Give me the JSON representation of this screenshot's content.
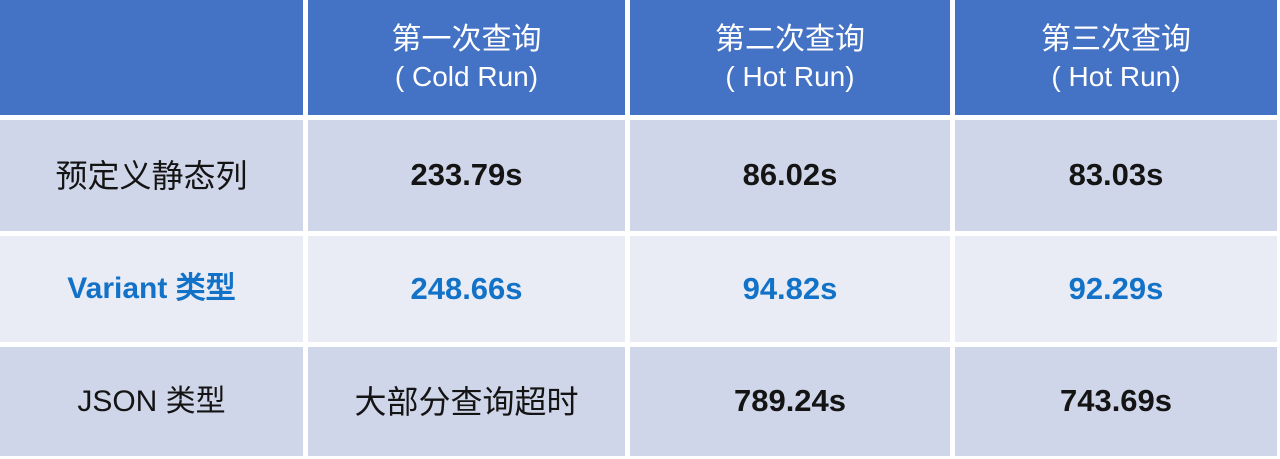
{
  "colors": {
    "header_bg": "#4472C4",
    "band_dark": "#D0D6E9",
    "band_light": "#E9EBF5",
    "accent_blue": "#1172C7",
    "divider_white": "#FFFFFF"
  },
  "table": {
    "header": {
      "corner": "",
      "cols": [
        {
          "title_zh": "第一次查询",
          "title_en": "( Cold Run)"
        },
        {
          "title_zh": "第二次查询",
          "title_en": "( Hot Run)"
        },
        {
          "title_zh": "第三次查询",
          "title_en": "( Hot Run)"
        }
      ]
    },
    "rows": [
      {
        "label": "预定义静态列",
        "values": [
          "233.79s",
          "86.02s",
          "83.03s"
        ]
      },
      {
        "label": "Variant 类型",
        "values": [
          "248.66s",
          "94.82s",
          "92.29s"
        ]
      },
      {
        "label": "JSON 类型",
        "values": [
          "大部分查询超时",
          "789.24s",
          "743.69s"
        ]
      }
    ]
  },
  "chart_data": {
    "type": "table",
    "title": "",
    "columns": [
      "",
      "第一次查询 (Cold Run)",
      "第二次查询 (Hot Run)",
      "第三次查询 (Hot Run)"
    ],
    "rows": [
      [
        "预定义静态列",
        "233.79s",
        "86.02s",
        "83.03s"
      ],
      [
        "Variant 类型",
        "248.66s",
        "94.82s",
        "92.29s"
      ],
      [
        "JSON 类型",
        "大部分查询超时",
        "789.24s",
        "743.69s"
      ]
    ],
    "layout": {
      "banding": "rows",
      "header_fill": "#4472C4",
      "grid": "white dividers"
    }
  }
}
